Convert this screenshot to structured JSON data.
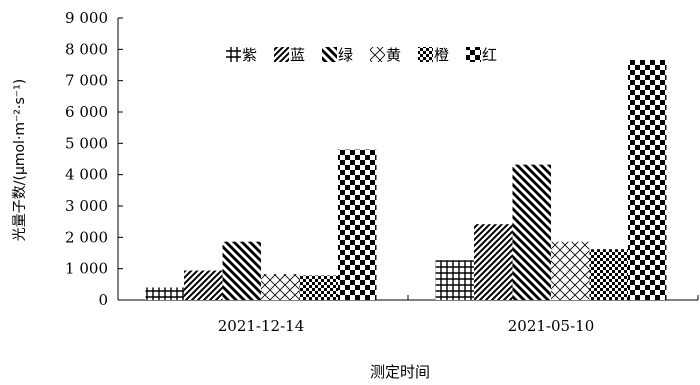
{
  "chart_data": {
    "type": "bar",
    "categories": [
      "2021-12-14",
      "2021-05-10"
    ],
    "series": [
      {
        "name": "紫",
        "values": [
          400,
          1270
        ]
      },
      {
        "name": "蓝",
        "values": [
          940,
          2420
        ]
      },
      {
        "name": "绿",
        "values": [
          1860,
          4320
        ]
      },
      {
        "name": "黄",
        "values": [
          830,
          1860
        ]
      },
      {
        "name": "橙",
        "values": [
          780,
          1620
        ]
      },
      {
        "name": "红",
        "values": [
          4800,
          7660
        ]
      }
    ],
    "series_patterns": [
      "grid",
      "diagonal-up",
      "diagonal-down",
      "crosshatch-light",
      "checker-small",
      "checker-large"
    ],
    "title": "",
    "xlabel": "测定时间",
    "ylabel": "光量子数/(μmol·m⁻²·s⁻¹)",
    "ylim": [
      0,
      9000
    ],
    "yticks": [
      0,
      1000,
      2000,
      3000,
      4000,
      5000,
      6000,
      7000,
      8000,
      9000
    ],
    "ytick_labels": [
      "0",
      "1 000",
      "2 000",
      "3 000",
      "4 000",
      "5 000",
      "6 000",
      "7 000",
      "8 000",
      "9 000"
    ],
    "grid": false,
    "legend_position": "top-center"
  }
}
